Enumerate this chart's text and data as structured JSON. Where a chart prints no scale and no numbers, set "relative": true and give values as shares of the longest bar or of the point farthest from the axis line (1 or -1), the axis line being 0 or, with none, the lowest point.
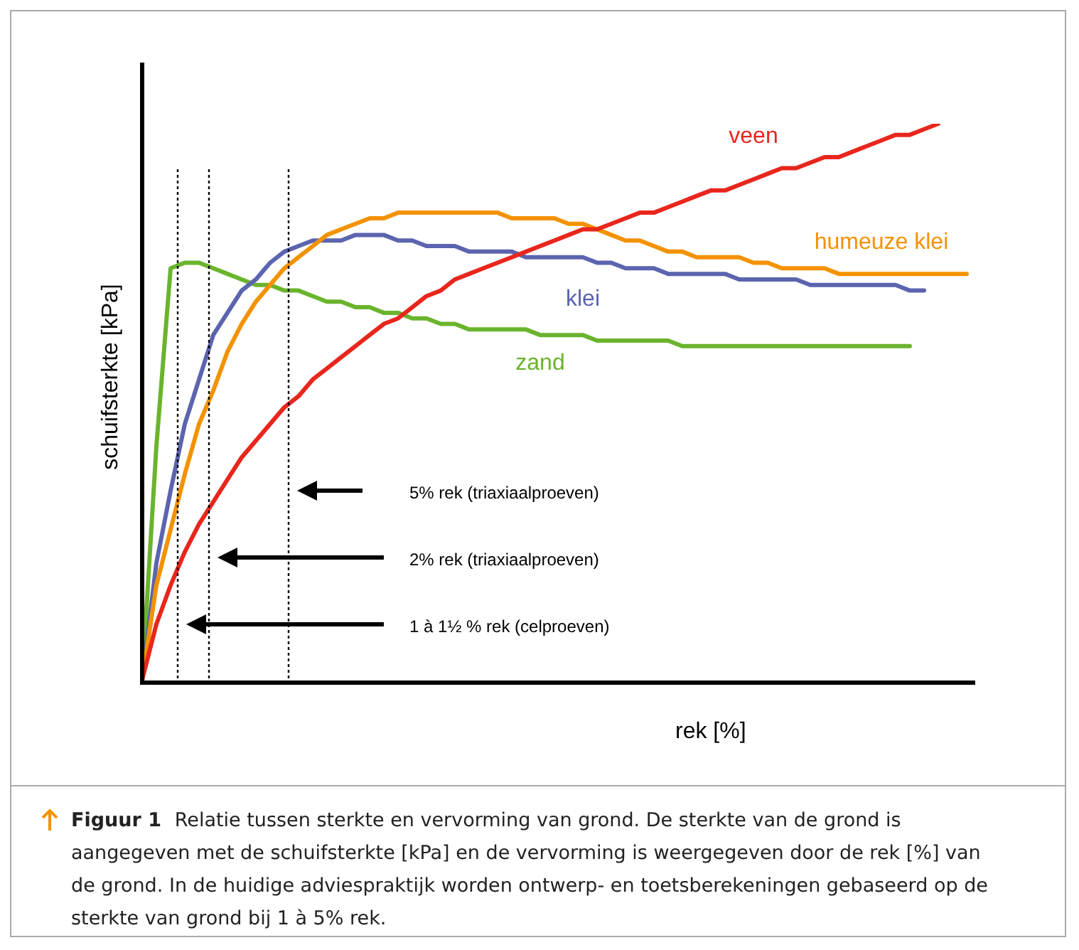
{
  "chart_data": {
    "type": "line",
    "relative": true,
    "xlabel": "rek [%]",
    "ylabel": "schuifsterkte [kPa]",
    "categories": [
      null,
      null,
      null,
      null,
      null,
      null,
      null,
      null,
      null,
      null,
      null,
      null,
      null,
      null,
      null,
      null,
      null,
      null,
      null,
      null,
      null,
      null,
      null,
      null,
      null,
      null,
      null,
      null,
      null,
      null,
      null,
      null,
      null,
      null,
      null,
      null,
      null,
      null,
      null,
      null,
      null,
      null,
      null,
      null,
      null,
      null,
      null,
      null,
      null,
      null,
      null,
      null,
      null,
      null,
      null,
      null,
      null,
      null,
      null
    ],
    "series": [
      {
        "name": "veen",
        "color": "#e8261c",
        "values": [
          0,
          0.1,
          0.17,
          0.23,
          0.28,
          0.32,
          0.36,
          0.4,
          0.43,
          0.46,
          0.49,
          0.51,
          0.54,
          0.56,
          0.58,
          0.6,
          0.62,
          0.64,
          0.65,
          0.67,
          0.69,
          0.7,
          0.72,
          0.73,
          0.74,
          0.75,
          0.76,
          0.77,
          0.78,
          0.79,
          0.8,
          0.81,
          0.81,
          0.82,
          0.83,
          0.84,
          0.84,
          0.85,
          0.86,
          0.87,
          0.88,
          0.88,
          0.89,
          0.9,
          0.91,
          0.92,
          0.92,
          0.93,
          0.94,
          0.94,
          0.95,
          0.96,
          0.97,
          0.98,
          0.98,
          0.99,
          1,
          null,
          null
        ]
      },
      {
        "name": "humeuze klei",
        "color": "#f39200",
        "values": [
          0,
          0.17,
          0.27,
          0.37,
          0.46,
          0.52,
          0.59,
          0.64,
          0.68,
          0.71,
          0.74,
          0.76,
          0.78,
          0.8,
          0.81,
          0.82,
          0.83,
          0.83,
          0.84,
          0.84,
          0.84,
          0.84,
          0.84,
          0.84,
          0.84,
          0.84,
          0.83,
          0.83,
          0.83,
          0.83,
          0.82,
          0.82,
          0.81,
          0.8,
          0.79,
          0.79,
          0.78,
          0.77,
          0.77,
          0.76,
          0.76,
          0.76,
          0.76,
          0.75,
          0.75,
          0.74,
          0.74,
          0.74,
          0.74,
          0.73,
          0.73,
          0.73,
          0.73,
          0.73,
          0.73,
          0.73,
          0.73,
          0.73,
          0.73
        ]
      },
      {
        "name": "klei",
        "color": "#5b64ae",
        "values": [
          0,
          0.21,
          0.34,
          0.46,
          0.54,
          0.62,
          0.66,
          0.7,
          0.72,
          0.75,
          0.77,
          0.78,
          0.79,
          0.79,
          0.79,
          0.8,
          0.8,
          0.8,
          0.79,
          0.79,
          0.78,
          0.78,
          0.78,
          0.77,
          0.77,
          0.77,
          0.77,
          0.76,
          0.76,
          0.76,
          0.76,
          0.76,
          0.75,
          0.75,
          0.74,
          0.74,
          0.74,
          0.73,
          0.73,
          0.73,
          0.73,
          0.73,
          0.72,
          0.72,
          0.72,
          0.72,
          0.72,
          0.71,
          0.71,
          0.71,
          0.71,
          0.71,
          0.71,
          0.71,
          0.7,
          0.7,
          null,
          null,
          null
        ]
      },
      {
        "name": "zand",
        "color": "#6ab42d",
        "values": [
          0,
          0.42,
          0.74,
          0.75,
          0.75,
          0.74,
          0.73,
          0.72,
          0.71,
          0.71,
          0.7,
          0.7,
          0.69,
          0.68,
          0.68,
          0.67,
          0.67,
          0.66,
          0.66,
          0.65,
          0.65,
          0.64,
          0.64,
          0.63,
          0.63,
          0.63,
          0.63,
          0.63,
          0.62,
          0.62,
          0.62,
          0.62,
          0.61,
          0.61,
          0.61,
          0.61,
          0.61,
          0.61,
          0.6,
          0.6,
          0.6,
          0.6,
          0.6,
          0.6,
          0.6,
          0.6,
          0.6,
          0.6,
          0.6,
          0.6,
          0.6,
          0.6,
          0.6,
          0.6,
          0.6,
          null,
          null,
          null,
          null
        ]
      }
    ],
    "annotations": [
      "1 à 1½ % rek (celproeven)",
      "2% rek (triaxiaalproeven)",
      "5% rek (triaxiaalproeven)",
      "Figuur 1",
      "Relatie tussen sterkte en vervorming van grond. De sterkte van de grond is aangegeven met de schuifsterkte [kPa] en de vervorming is weergegeven door de rek [%] van de grond. In de huidige adviespraktijk worden ontwerp- en toetsberekeningen gebaseerd op de sterkte van grond bij 1 à 5% rek."
    ],
    "legend": false,
    "tick_labels": false,
    "marker": "none",
    "line_style": "solid"
  }
}
